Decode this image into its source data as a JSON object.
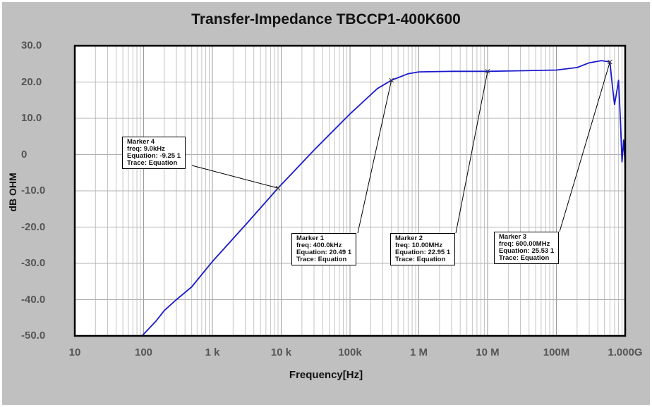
{
  "chart_data": {
    "type": "line",
    "title": "Transfer-Impedance TBCCP1-400K600",
    "xlabel": "Frequency[Hz]",
    "ylabel": "dB OHM",
    "xscale": "log",
    "xlim": [
      10,
      1000000000
    ],
    "ylim": [
      -50,
      30
    ],
    "grid": true,
    "x_tick_labels": [
      "10",
      "100",
      "1  k",
      "10 k",
      "100k",
      "1  M",
      "10 M",
      "100M",
      "1.000G"
    ],
    "y_tick_labels": [
      "30.0",
      "20.0",
      "10.0",
      "0",
      "-10.0",
      "-20.0",
      "-30.0",
      "-40.0",
      "-50.0"
    ],
    "series": [
      {
        "name": "Equation",
        "color": "#1a1acc",
        "x": [
          95,
          150,
          200,
          300,
          500,
          1000,
          3000,
          9000,
          30000,
          100000,
          250000,
          400000,
          700000,
          1000000,
          3000000,
          10000000,
          30000000,
          100000000,
          200000000,
          300000000,
          450000000,
          600000000,
          650000000,
          700000000,
          750000000,
          800000000,
          850000000,
          900000000,
          950000000,
          1000000000
        ],
        "y": [
          -50,
          -46,
          -43,
          -40,
          -36.5,
          -29.5,
          -19.5,
          -9.25,
          1.2,
          11.2,
          18.2,
          20.49,
          22.3,
          22.8,
          22.95,
          22.95,
          23.1,
          23.3,
          24,
          25.3,
          25.9,
          25.53,
          19,
          13.8,
          17,
          20.5,
          10,
          -2,
          4,
          -3
        ]
      }
    ],
    "markers": [
      {
        "id": "Marker 4",
        "freq_label": "freq: 9.0kHz",
        "equation_label": "Equation: -9.25 1",
        "trace_label": "Trace: Equation",
        "freq_hz": 9000,
        "value": -9.25
      },
      {
        "id": "Marker 1",
        "freq_label": "freq: 400.0kHz",
        "equation_label": "Equation: 20.49 1",
        "trace_label": "Trace: Equation",
        "freq_hz": 400000,
        "value": 20.49
      },
      {
        "id": "Marker 2",
        "freq_label": "freq: 10.00MHz",
        "equation_label": "Equation: 22.95 1",
        "trace_label": "Trace: Equation",
        "freq_hz": 10000000,
        "value": 22.95
      },
      {
        "id": "Marker 3",
        "freq_label": "freq: 600.00MHz",
        "equation_label": "Equation: 25.53 1",
        "trace_label": "Trace: Equation",
        "freq_hz": 600000000,
        "value": 25.53
      }
    ],
    "legend": "none"
  }
}
